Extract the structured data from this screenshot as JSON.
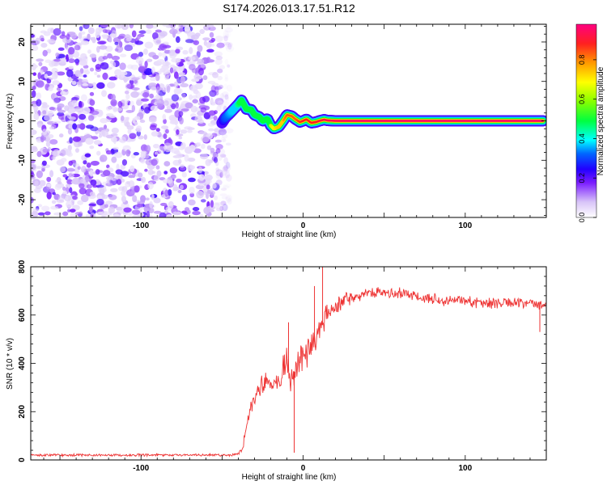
{
  "figure": {
    "title": "S174.2026.013.17.51.R12"
  },
  "chart_data": [
    {
      "type": "heatmap",
      "xlabel": "Height of straight line (km)",
      "ylabel": "Frequency (Hz)",
      "xlim": [
        -168,
        150
      ],
      "ylim": [
        -24.5,
        24.5
      ],
      "x_ticks": [
        -100,
        0,
        100
      ],
      "y_ticks": [
        -20,
        -10,
        0,
        10,
        20
      ],
      "grid": false,
      "noise_region_x": [
        -168,
        -45
      ],
      "ridge": {
        "x": [
          -50,
          -48,
          -45,
          -40,
          -38,
          -35,
          -32,
          -30,
          -27,
          -25,
          -22,
          -20,
          -18,
          -15,
          -12,
          -10,
          -7,
          -5,
          -2,
          0,
          2,
          5,
          8,
          10,
          13,
          15,
          20,
          30,
          50,
          80,
          120,
          148
        ],
        "y": [
          -0.5,
          0.8,
          2.0,
          4.2,
          5.2,
          3.0,
          2.8,
          1.5,
          1.0,
          0.0,
          0.5,
          -1.2,
          -2.0,
          -1.5,
          0.2,
          1.5,
          1.2,
          0.5,
          -0.3,
          0.0,
          0.4,
          -0.5,
          -0.3,
          0.0,
          0.3,
          0.1,
          0.0,
          0.0,
          0.0,
          0.0,
          0.0,
          0.0
        ],
        "amplitude": [
          0.2,
          0.3,
          0.35,
          0.45,
          0.55,
          0.5,
          0.55,
          0.6,
          0.6,
          0.65,
          0.6,
          0.65,
          0.7,
          0.75,
          0.8,
          0.85,
          0.85,
          0.85,
          0.88,
          0.9,
          0.9,
          0.9,
          0.9,
          0.92,
          0.94,
          0.95,
          0.95,
          0.97,
          0.97,
          0.97,
          0.97,
          0.97
        ]
      },
      "colorbar": {
        "label": "Normalized spectral amplitude",
        "range": [
          0,
          0.98
        ],
        "ticks": [
          0.0,
          0.2,
          0.4,
          0.6,
          0.8
        ],
        "tick_labels": [
          "0.0",
          "0.2",
          "0.4",
          "0.6",
          "0.8"
        ],
        "stops": [
          {
            "v": 0.0,
            "color": "#ffffff"
          },
          {
            "v": 0.08,
            "color": "#d8c4f8"
          },
          {
            "v": 0.18,
            "color": "#7a1cff"
          },
          {
            "v": 0.25,
            "color": "#2200ff"
          },
          {
            "v": 0.33,
            "color": "#0066ff"
          },
          {
            "v": 0.4,
            "color": "#00ffff"
          },
          {
            "v": 0.5,
            "color": "#00ff40"
          },
          {
            "v": 0.6,
            "color": "#88ff00"
          },
          {
            "v": 0.7,
            "color": "#ffff00"
          },
          {
            "v": 0.8,
            "color": "#ff9900"
          },
          {
            "v": 0.9,
            "color": "#ff2020"
          },
          {
            "v": 1.0,
            "color": "#ff0080"
          }
        ]
      }
    },
    {
      "type": "line",
      "xlabel": "Height of straight line (km)",
      "ylabel": "SNR (10 * v/v)",
      "xlim": [
        -168,
        150
      ],
      "ylim": [
        0,
        800
      ],
      "x_ticks": [
        -100,
        0,
        100
      ],
      "y_ticks": [
        0,
        200,
        400,
        600,
        800
      ],
      "grid": false,
      "color": "#ee3333",
      "series": [
        {
          "x": [
            -168,
            -140,
            -120,
            -100,
            -80,
            -60,
            -45,
            -40,
            -37,
            -34,
            -30,
            -27,
            -25,
            -22,
            -20,
            -17,
            -15,
            -12,
            -10,
            -8,
            -6,
            -3,
            0,
            3,
            5,
            8,
            10,
            12,
            15,
            18,
            20,
            25,
            30,
            35,
            40,
            50,
            60,
            70,
            80,
            90,
            100,
            110,
            120,
            130,
            140,
            150
          ],
          "y": [
            20,
            20,
            20,
            20,
            20,
            20,
            20,
            25,
            60,
            180,
            260,
            300,
            320,
            330,
            310,
            330,
            330,
            380,
            410,
            330,
            360,
            400,
            420,
            450,
            470,
            500,
            530,
            560,
            600,
            620,
            640,
            660,
            670,
            680,
            690,
            690,
            690,
            680,
            670,
            660,
            660,
            650,
            650,
            650,
            645,
            640
          ]
        }
      ],
      "spikes": [
        {
          "x": -5.5,
          "y": 30
        },
        {
          "x": 12,
          "y": 805
        },
        {
          "x": -9,
          "y": 570
        },
        {
          "x": 7,
          "y": 720
        },
        {
          "x": 146,
          "y": 530
        }
      ],
      "noise_scale": [
        {
          "x": -168,
          "a": 8
        },
        {
          "x": -40,
          "a": 8
        },
        {
          "x": -35,
          "a": 45
        },
        {
          "x": -15,
          "a": 90
        },
        {
          "x": 0,
          "a": 110
        },
        {
          "x": 10,
          "a": 100
        },
        {
          "x": 20,
          "a": 55
        },
        {
          "x": 40,
          "a": 35
        },
        {
          "x": 150,
          "a": 35
        }
      ]
    }
  ]
}
